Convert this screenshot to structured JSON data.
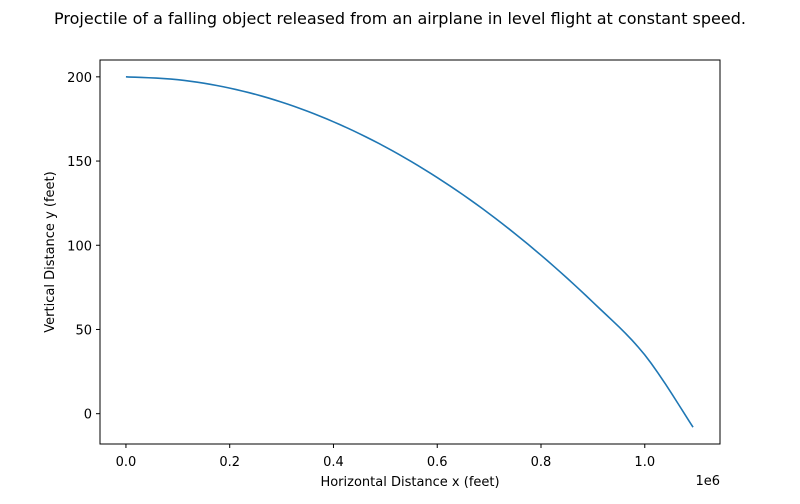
{
  "chart_data": {
    "type": "line",
    "title": "Projectile of a falling object released from an airplane in level flight at constant speed.",
    "xlabel": "Horizontal Distance x (feet)",
    "ylabel": "Vertical Distance y (feet)",
    "x_scale_label": "1e6",
    "xlim": [
      -0.05,
      1.145
    ],
    "ylim": [
      -18,
      210
    ],
    "x_ticks": [
      0.0,
      0.2,
      0.4,
      0.6,
      0.8,
      1.0
    ],
    "x_tick_labels": [
      "0.0",
      "0.2",
      "0.4",
      "0.6",
      "0.8",
      "1.0"
    ],
    "y_ticks": [
      0,
      50,
      100,
      150,
      200
    ],
    "y_tick_labels": [
      "0",
      "50",
      "100",
      "150",
      "200"
    ],
    "grid": false,
    "series": [
      {
        "color": "#1f77b4",
        "x": [
          0.0,
          0.1,
          0.2,
          0.3,
          0.4,
          0.5,
          0.6,
          0.7,
          0.8,
          0.9,
          1.0,
          1.093
        ],
        "y": [
          200,
          198.3,
          193.3,
          185,
          173.3,
          158.4,
          140.2,
          118.8,
          94.1,
          66.2,
          34.9,
          -8.0
        ]
      }
    ]
  }
}
